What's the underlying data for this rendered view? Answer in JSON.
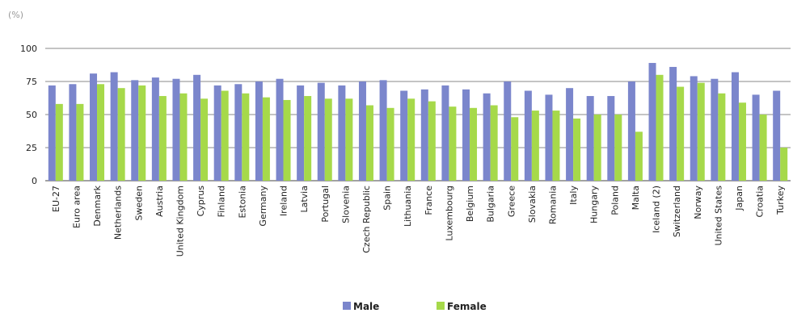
{
  "chart_data": {
    "type": "bar",
    "unit_label": "(%)",
    "title": "",
    "xlabel": "",
    "ylabel": "",
    "ylim": [
      0,
      100
    ],
    "yticks": [
      0,
      25,
      50,
      75,
      100
    ],
    "grid": "horizontal",
    "legend_position": "bottom",
    "categories": [
      "EU-27",
      "Euro area",
      "Denmark",
      "Netherlands",
      "Sweden",
      "Austria",
      "United Kingdom",
      "Cyprus",
      "Finland",
      "Estonia",
      "Germany",
      "Ireland",
      "Latvia",
      "Portugal",
      "Slovenia",
      "Czech Republic",
      "Spain",
      "Lithuania",
      "France",
      "Luxembourg",
      "Belgium",
      "Bulgaria",
      "Greece",
      "Slovakia",
      "Romania",
      "Italy",
      "Hungary",
      "Poland",
      "Malta",
      "Iceland (2)",
      "Switzerland",
      "Norway",
      "United States",
      "Japan",
      "Croatia",
      "Turkey"
    ],
    "series": [
      {
        "name": "Male",
        "color": "#7b86cc",
        "values": [
          72,
          73,
          81,
          82,
          76,
          78,
          77,
          80,
          72,
          73,
          75,
          77,
          72,
          74,
          72,
          75,
          76,
          68,
          69,
          72,
          69,
          66,
          75,
          68,
          65,
          70,
          64,
          64,
          75,
          89,
          86,
          79,
          77,
          82,
          65,
          68
        ]
      },
      {
        "name": "Female",
        "color": "#a6d94a",
        "values": [
          58,
          58,
          73,
          70,
          72,
          64,
          66,
          62,
          68,
          66,
          63,
          61,
          64,
          62,
          62,
          57,
          55,
          62,
          60,
          56,
          55,
          57,
          48,
          53,
          53,
          47,
          50,
          50,
          37,
          80,
          71,
          74,
          66,
          59,
          50,
          25
        ]
      }
    ]
  }
}
